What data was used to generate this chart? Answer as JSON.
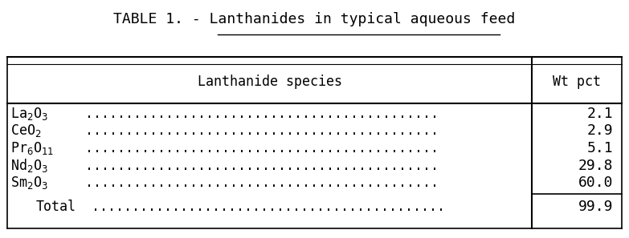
{
  "title_prefix": "TABLE 1. - ",
  "title_underlined": "Lanthanides in typical aqueous feed",
  "col_header_left": "Lanthanide species",
  "col_header_right": "Wt pct",
  "species_labels": [
    "La$_2$O$_3$",
    "CeO$_2$",
    "Pr$_6$O$_{11}$",
    "Nd$_2$O$_3$",
    "Sm$_2$O$_3$"
  ],
  "values": [
    "2.1",
    "2.9",
    "5.1",
    "29.8",
    "60.0"
  ],
  "total_label": "Total",
  "total_value": "99.9",
  "bg_color": "#ffffff",
  "text_color": "#000000",
  "title_fontsize": 13,
  "table_fontsize": 12,
  "dots": "............................................"
}
